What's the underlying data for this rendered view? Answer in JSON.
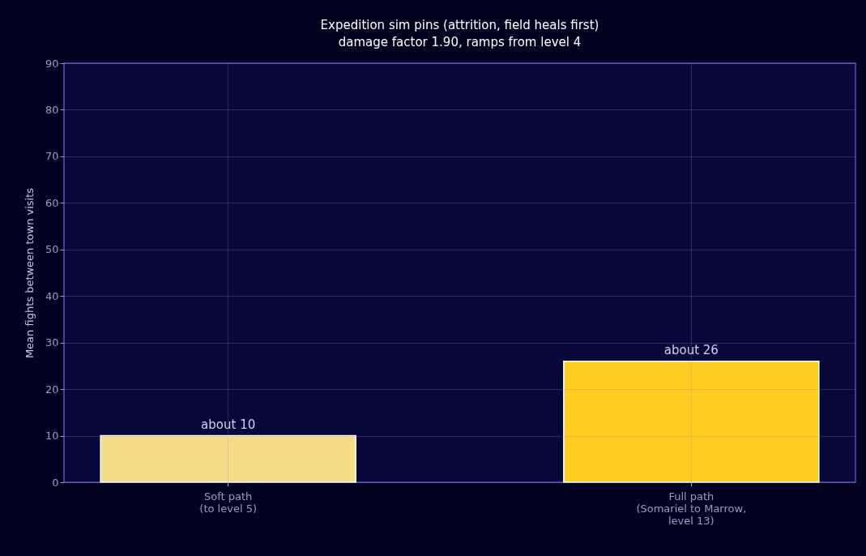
{
  "chart_data": {
    "type": "bar",
    "title": "Expedition sim pins (attrition, field heals first)",
    "subtitle": "damage factor 1.90, ramps from level 4",
    "ylabel": "Mean fights between town visits",
    "categories": [
      "Soft path\n(to level 5)",
      "Full path\n(Somariel to Marrow,\nlevel 13)"
    ],
    "values": [
      10,
      26
    ],
    "colors": [
      "#f6dc87",
      "#fdcd1f"
    ],
    "value_labels": [
      "about 10",
      "about 26"
    ],
    "ylim": [
      0,
      90
    ],
    "yticks": [
      0,
      10,
      20,
      30,
      40,
      50,
      60,
      70,
      80,
      90
    ],
    "grid": true
  }
}
